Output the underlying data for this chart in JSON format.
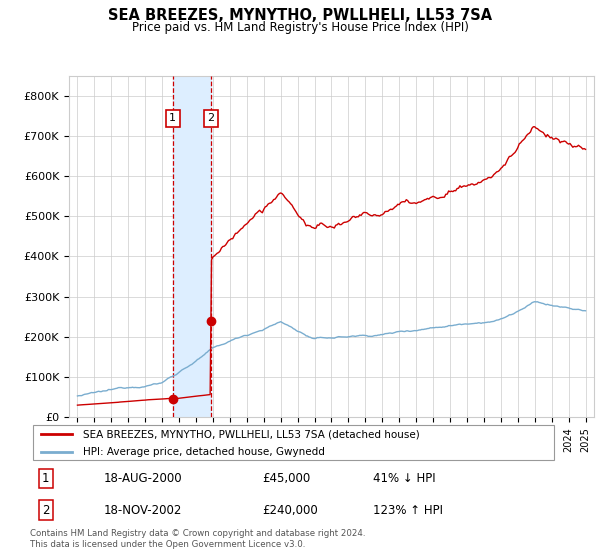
{
  "title": "SEA BREEZES, MYNYTHO, PWLLHELI, LL53 7SA",
  "subtitle": "Price paid vs. HM Land Registry's House Price Index (HPI)",
  "legend_line1": "SEA BREEZES, MYNYTHO, PWLLHELI, LL53 7SA (detached house)",
  "legend_line2": "HPI: Average price, detached house, Gwynedd",
  "footnote1": "Contains HM Land Registry data © Crown copyright and database right 2024.",
  "footnote2": "This data is licensed under the Open Government Licence v3.0.",
  "sale1_date": "18-AUG-2000",
  "sale1_price": "£45,000",
  "sale1_hpi": "41% ↓ HPI",
  "sale2_date": "18-NOV-2002",
  "sale2_price": "£240,000",
  "sale2_hpi": "123% ↑ HPI",
  "property_color": "#cc0000",
  "hpi_color": "#7aadcf",
  "highlight_color": "#ddeeff",
  "sale1_x": 2000.63,
  "sale1_y": 45000,
  "sale2_x": 2002.88,
  "sale2_y": 240000,
  "xmin": 1994.5,
  "xmax": 2025.5,
  "ymin": 0,
  "ymax": 850000,
  "yticks": [
    0,
    100000,
    200000,
    300000,
    400000,
    500000,
    600000,
    700000,
    800000
  ],
  "ytick_labels": [
    "£0",
    "£100K",
    "£200K",
    "£300K",
    "£400K",
    "£500K",
    "£600K",
    "£700K",
    "£800K"
  ]
}
